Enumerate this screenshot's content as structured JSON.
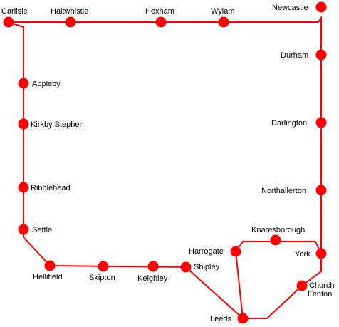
{
  "colors": {
    "line": "#ff0000",
    "station": "#ff0000",
    "label": "#000000",
    "background": "#ffffff"
  },
  "stations": [
    {
      "id": "carlisle",
      "name": "Carlisle"
    },
    {
      "id": "haltwhistle",
      "name": "Haltwhistle"
    },
    {
      "id": "hexham",
      "name": "Hexham"
    },
    {
      "id": "wylam",
      "name": "Wylam"
    },
    {
      "id": "newcastle",
      "name": "Newcastle"
    },
    {
      "id": "durham",
      "name": "Durham"
    },
    {
      "id": "darlington",
      "name": "Darlington"
    },
    {
      "id": "northallerton",
      "name": "Northallerton"
    },
    {
      "id": "york",
      "name": "York"
    },
    {
      "id": "church-fenton",
      "name": "Church Fenton",
      "lines": [
        "Church",
        "Fenton"
      ]
    },
    {
      "id": "leeds",
      "name": "Leeds"
    },
    {
      "id": "harrogate",
      "name": "Harrogate"
    },
    {
      "id": "knaresborough",
      "name": "Knaresborough"
    },
    {
      "id": "shipley",
      "name": "Shipley"
    },
    {
      "id": "keighley",
      "name": "Keighley"
    },
    {
      "id": "skipton",
      "name": "Skipton"
    },
    {
      "id": "hellifield",
      "name": "Hellifield"
    },
    {
      "id": "settle",
      "name": "Settle"
    },
    {
      "id": "ribblehead",
      "name": "Ribblehead"
    },
    {
      "id": "kirkby-stephen",
      "name": "Kirkby Stephen"
    },
    {
      "id": "appleby",
      "name": "Appleby"
    }
  ]
}
